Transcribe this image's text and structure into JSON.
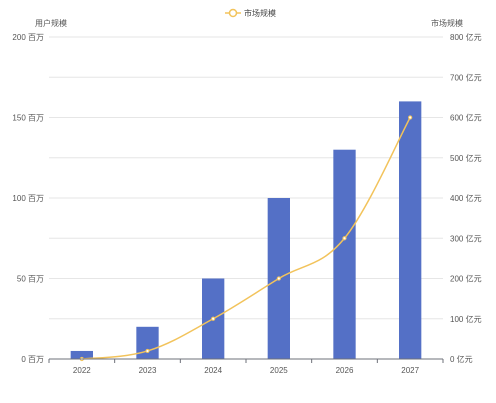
{
  "chart_data": {
    "type": "bar",
    "categories": [
      "2022",
      "2023",
      "2024",
      "2025",
      "2026",
      "2027"
    ],
    "series": [
      {
        "name": "",
        "type": "bar",
        "axis": "left",
        "color": "#5470c6",
        "values": [
          5,
          20,
          50,
          100,
          130,
          160
        ]
      },
      {
        "name": "市场规模",
        "type": "line",
        "axis": "right",
        "color": "#f2c35b",
        "values": [
          0,
          20,
          100,
          200,
          300,
          600
        ]
      }
    ],
    "left_axis": {
      "title": "用户规模",
      "min": 0,
      "max": 200,
      "ticks": [
        0,
        50,
        100,
        150,
        200
      ],
      "tick_labels": [
        "0 百万",
        "50 百万",
        "100 百万",
        "150 百万",
        "200 百万"
      ]
    },
    "right_axis": {
      "title": "市场规模",
      "min": 0,
      "max": 800,
      "ticks": [
        0,
        100,
        200,
        300,
        400,
        500,
        600,
        700,
        800
      ],
      "tick_labels": [
        "0 亿元",
        "100 亿元",
        "200 亿元",
        "300 亿元",
        "400 亿元",
        "500 亿元",
        "600 亿元",
        "700 亿元",
        "800 亿元"
      ]
    },
    "legend": {
      "position": "top-center",
      "entries": [
        "市场规模"
      ]
    },
    "grid": true
  }
}
